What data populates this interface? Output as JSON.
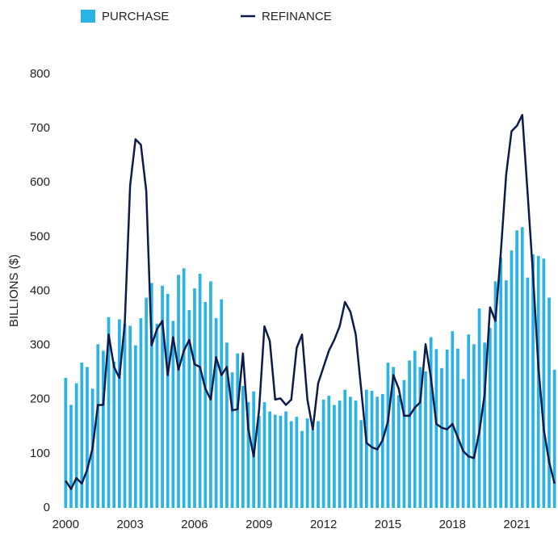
{
  "chart_data": {
    "type": "bar_line",
    "y_label": "BILLIONS ($)",
    "categories": [
      "2000",
      null,
      null,
      null,
      null,
      null,
      null,
      null,
      null,
      null,
      null,
      null,
      "2003",
      null,
      null,
      null,
      null,
      null,
      null,
      null,
      null,
      null,
      null,
      null,
      "2006",
      null,
      null,
      null,
      null,
      null,
      null,
      null,
      null,
      null,
      null,
      null,
      "2009",
      null,
      null,
      null,
      null,
      null,
      null,
      null,
      null,
      null,
      null,
      null,
      "2012",
      null,
      null,
      null,
      null,
      null,
      null,
      null,
      null,
      null,
      null,
      null,
      "2015",
      null,
      null,
      null,
      null,
      null,
      null,
      null,
      null,
      null,
      null,
      null,
      "2018",
      null,
      null,
      null,
      null,
      null,
      null,
      null,
      null,
      null,
      null,
      null,
      "2021",
      null,
      null,
      null,
      null,
      null,
      null,
      null
    ],
    "series": [
      {
        "name": "PURCHASE",
        "type": "bar",
        "color": "#2bb3e3",
        "values": [
          240,
          190,
          230,
          268,
          260,
          220,
          302,
          290,
          352,
          270,
          348,
          340,
          336,
          300,
          350,
          388,
          415,
          340,
          410,
          395,
          345,
          430,
          442,
          365,
          405,
          432,
          380,
          418,
          350,
          385,
          305,
          250,
          285,
          225,
          195,
          215,
          170,
          195,
          178,
          172,
          170,
          178,
          160,
          168,
          142,
          165,
          145,
          160,
          200,
          207,
          190,
          198,
          218,
          205,
          198,
          162,
          218,
          216,
          205,
          210,
          268,
          260,
          208,
          236,
          272,
          290,
          260,
          252,
          315,
          293,
          258,
          292,
          326,
          294,
          238,
          320,
          302,
          368,
          305,
          332,
          418,
          462,
          420,
          475,
          512,
          518,
          425,
          468,
          465,
          460,
          388,
          255
        ]
      },
      {
        "name": "REFINANCE",
        "type": "line",
        "color": "#0d1b4b",
        "values": [
          50,
          35,
          55,
          45,
          70,
          110,
          190,
          190,
          320,
          260,
          240,
          340,
          595,
          680,
          670,
          585,
          300,
          330,
          345,
          245,
          315,
          255,
          290,
          310,
          265,
          260,
          220,
          200,
          278,
          245,
          260,
          180,
          182,
          285,
          145,
          95,
          180,
          335,
          308,
          200,
          202,
          190,
          200,
          295,
          320,
          200,
          145,
          230,
          260,
          290,
          310,
          335,
          380,
          362,
          320,
          220,
          120,
          112,
          108,
          125,
          160,
          245,
          220,
          170,
          170,
          185,
          195,
          302,
          240,
          155,
          148,
          145,
          155,
          130,
          105,
          95,
          92,
          140,
          210,
          370,
          345,
          470,
          615,
          695,
          705,
          725,
          580,
          430,
          260,
          145,
          85,
          45
        ]
      }
    ],
    "ylim": [
      0,
      800
    ],
    "yticks": [
      0,
      100,
      200,
      300,
      400,
      500,
      600,
      700,
      800
    ]
  }
}
